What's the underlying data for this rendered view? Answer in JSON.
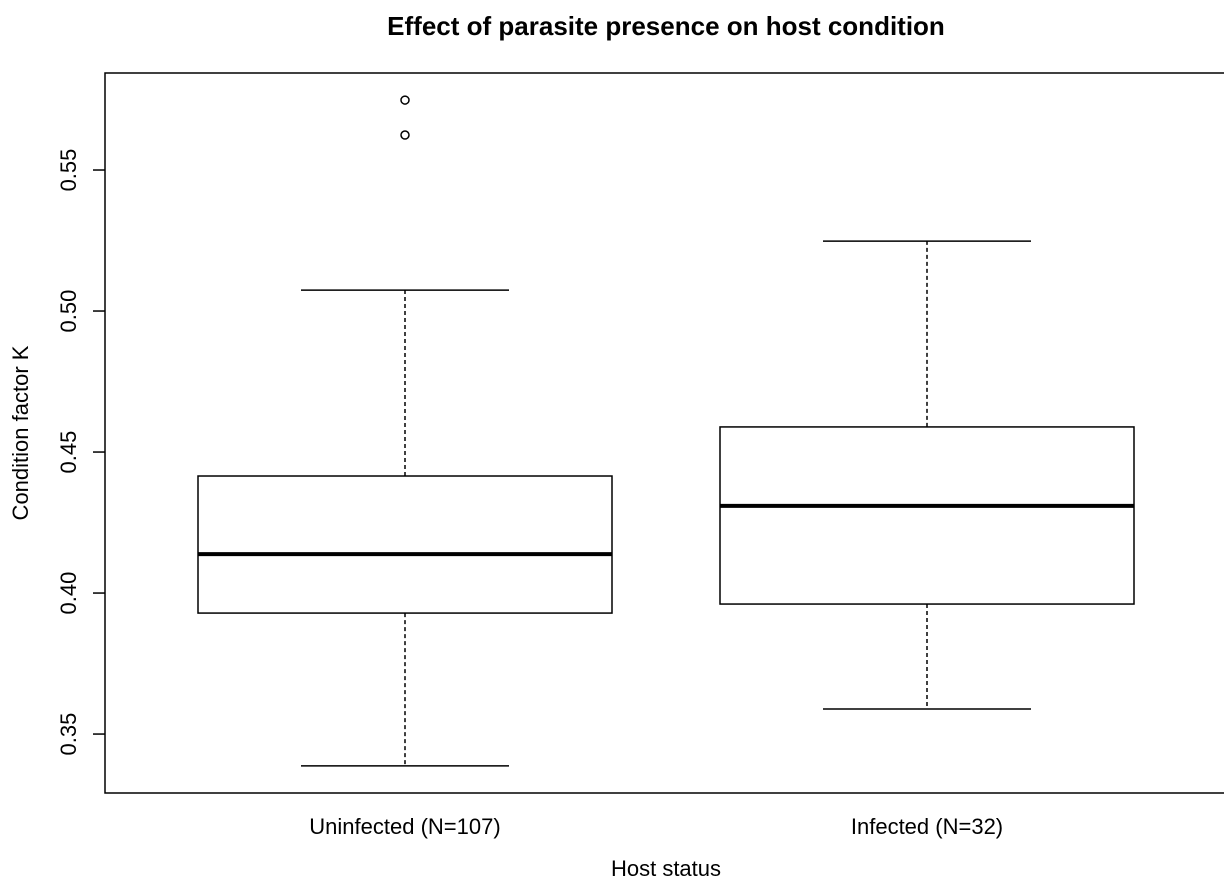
{
  "chart_data": {
    "type": "box",
    "title": "Effect of parasite presence on host condition",
    "x_label": "Host status",
    "y_label": "Condition factor K",
    "categories": [
      "Uninfected (N=107)",
      "Infected (N=32)"
    ],
    "boxes": [
      {
        "min": 0.3387,
        "q1": 0.3929,
        "median": 0.4138,
        "q3": 0.4415,
        "max": 0.5074,
        "outliers": [
          0.5748,
          0.5624
        ]
      },
      {
        "min": 0.3589,
        "q1": 0.3961,
        "median": 0.4309,
        "q3": 0.4589,
        "max": 0.5248,
        "outliers": []
      }
    ],
    "color": "#000000",
    "ylim": [
      0.3291,
      0.5844
    ],
    "yticks": [
      0.35,
      {
        "value": 0.4,
        "label": "0.40"
      },
      0.45,
      {
        "value": 0.5,
        "label": "0.50"
      },
      0.55
    ]
  }
}
